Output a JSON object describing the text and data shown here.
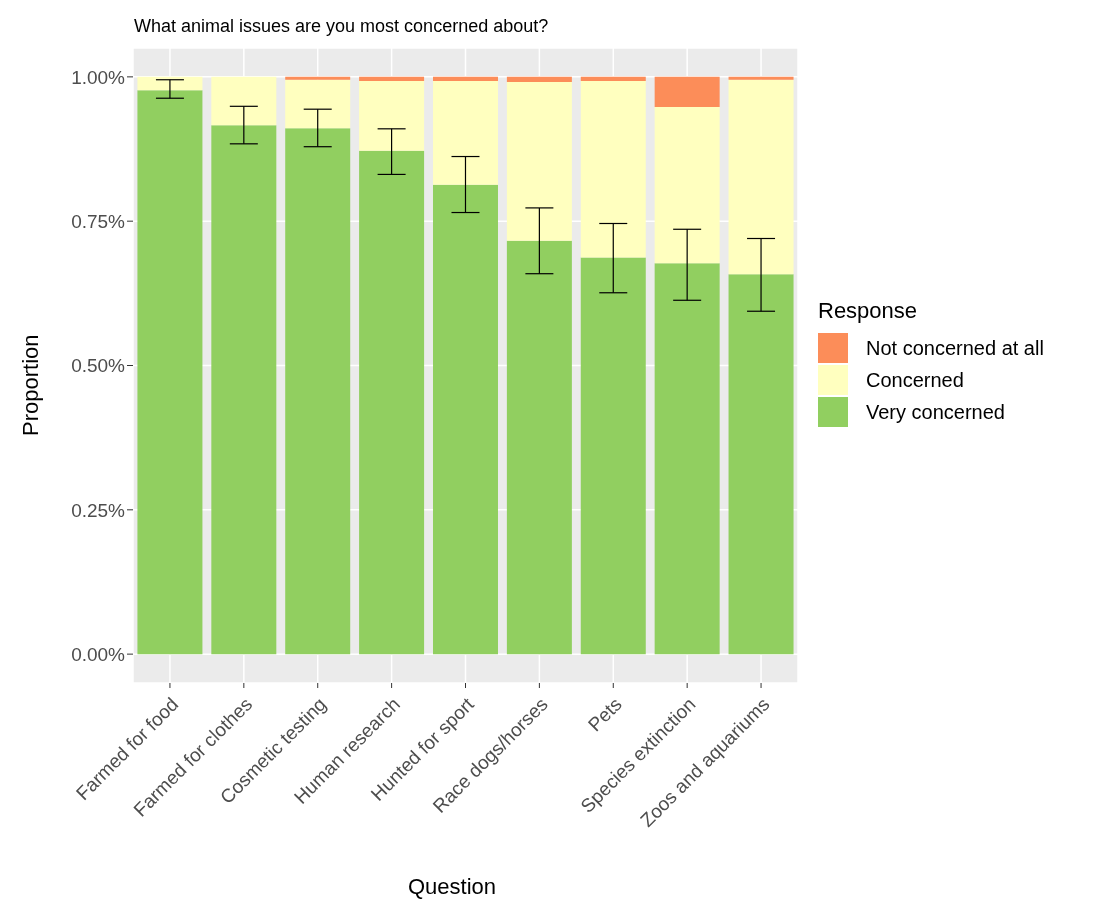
{
  "chart_data": {
    "type": "bar",
    "title": "What animal issues are you most concerned about?",
    "xlabel": "Question",
    "ylabel": "Proportion",
    "legend_title": "Response",
    "categories": [
      "Farmed for food",
      "Farmed for clothes",
      "Cosmetic testing",
      "Human research",
      "Hunted for sport",
      "Race dogs/horses",
      "Pets",
      "Species extinction",
      "Zoos and aquariums"
    ],
    "stacked": true,
    "series": [
      {
        "name": "Very concerned",
        "color": "#91cf60",
        "values": [
          0.977,
          0.916,
          0.911,
          0.872,
          0.813,
          0.716,
          0.687,
          0.677,
          0.658
        ],
        "errors": [
          [
            0.963,
            0.995
          ],
          [
            0.884,
            0.949
          ],
          [
            0.879,
            0.944
          ],
          [
            0.831,
            0.91
          ],
          [
            0.765,
            0.862
          ],
          [
            0.659,
            0.773
          ],
          [
            0.626,
            0.746
          ],
          [
            0.613,
            0.736
          ],
          [
            0.594,
            0.72
          ]
        ]
      },
      {
        "name": "Concerned",
        "color": "#ffffbf",
        "values": [
          0.023,
          0.084,
          0.084,
          0.121,
          0.18,
          0.275,
          0.306,
          0.271,
          0.337
        ]
      },
      {
        "name": "Not concerned at all",
        "color": "#fc8d59",
        "values": [
          0,
          0,
          0.005,
          0.007,
          0.007,
          0.009,
          0.007,
          0.052,
          0.005
        ]
      }
    ],
    "ylim": [
      -0.05,
      1.05
    ],
    "yticks": [
      {
        "value": 0,
        "label": "0.00%"
      },
      {
        "value": 0.25,
        "label": "0.25%"
      },
      {
        "value": 0.5,
        "label": "0.50%"
      },
      {
        "value": 0.75,
        "label": "0.75%"
      },
      {
        "value": 1,
        "label": "1.00%"
      }
    ],
    "grid": true,
    "legend": "right"
  }
}
